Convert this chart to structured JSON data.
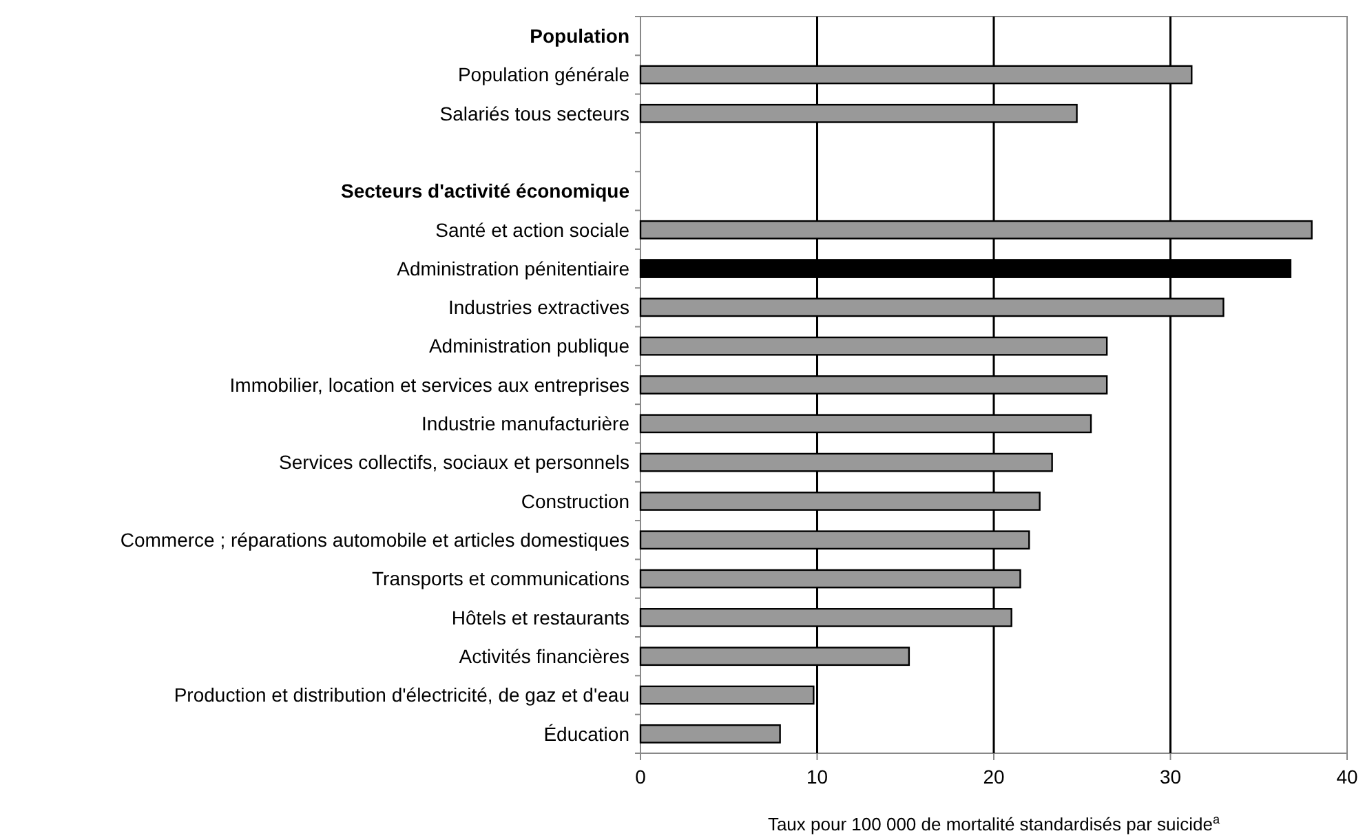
{
  "chart_data": {
    "type": "bar",
    "orientation": "horizontal",
    "xlabel": "Taux pour 100 000 de mortalité standardisés par suicide$^{a}$",
    "categories": [
      "Population",
      "Population générale",
      "Salariés tous secteurs",
      null,
      "Secteurs d'activité économique",
      "Santé et action sociale",
      "Administration pénitentiaire",
      "Industries extractives",
      "Administration publique",
      "Immobilier, location et services aux entreprises",
      "Industrie manufacturière",
      "Services collectifs, sociaux et personnels",
      "Construction",
      "Commerce ; réparations automobile et articles domestiques",
      "Transports et communications",
      "Hôtels et restaurants",
      "Activités financières",
      "Production et distribution d'électricité, de gaz et d'eau",
      "Éducation"
    ],
    "values": [
      null,
      31.2,
      24.7,
      null,
      null,
      38.0,
      36.8,
      33.0,
      26.4,
      26.4,
      25.5,
      23.3,
      22.6,
      22.0,
      21.5,
      21.0,
      15.2,
      9.8,
      7.9
    ],
    "colors": [
      null,
      "#999999",
      "#999999",
      null,
      null,
      "#999999",
      "#000000",
      "#999999",
      "#999999",
      "#999999",
      "#999999",
      "#999999",
      "#999999",
      "#999999",
      "#999999",
      "#999999",
      "#999999",
      "#999999",
      "#999999"
    ],
    "xlim": [
      0,
      40
    ],
    "xticks": [
      0,
      10,
      20,
      30,
      40
    ],
    "grid": "x"
  }
}
